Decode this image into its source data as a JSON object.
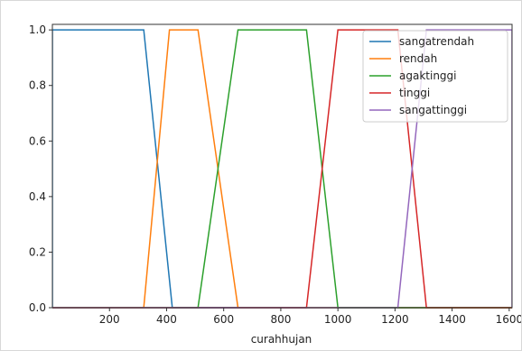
{
  "chart_data": {
    "type": "line",
    "xlabel": "curahhujan",
    "ylabel": "",
    "title": "",
    "xlim": [
      0,
      1610
    ],
    "ylim": [
      0,
      1.02
    ],
    "xticks": [
      200,
      400,
      600,
      800,
      1000,
      1200,
      1400,
      1600
    ],
    "yticks": [
      0.0,
      0.2,
      0.4,
      0.6,
      0.8,
      1.0
    ],
    "xtick_labels": [
      "200",
      "400",
      "600",
      "800",
      "1000",
      "1200",
      "1400",
      "1600"
    ],
    "ytick_labels": [
      "0.0",
      "0.2",
      "0.4",
      "0.6",
      "0.8",
      "1.0"
    ],
    "grid": false,
    "legend_position": "top-right",
    "series": [
      {
        "name": "sangatrendah",
        "color": "#1f77b4",
        "x": [
          0,
          0,
          320,
          420,
          1610
        ],
        "y": [
          0,
          1,
          1,
          0,
          0
        ]
      },
      {
        "name": "rendah",
        "color": "#ff7f0e",
        "x": [
          0,
          320,
          410,
          510,
          650,
          1610
        ],
        "y": [
          0,
          0,
          1,
          1,
          0,
          0
        ]
      },
      {
        "name": "agaktinggi",
        "color": "#2ca02c",
        "x": [
          0,
          510,
          650,
          890,
          1000,
          1610
        ],
        "y": [
          0,
          0,
          1,
          1,
          0,
          0
        ]
      },
      {
        "name": "tinggi",
        "color": "#d62728",
        "x": [
          0,
          890,
          1000,
          1210,
          1310,
          1610
        ],
        "y": [
          0,
          0,
          1,
          1,
          0,
          0
        ]
      },
      {
        "name": "sangattinggi",
        "color": "#9467bd",
        "x": [
          0,
          1210,
          1310,
          1610,
          1610
        ],
        "y": [
          0,
          0,
          1,
          1,
          0
        ]
      }
    ]
  }
}
